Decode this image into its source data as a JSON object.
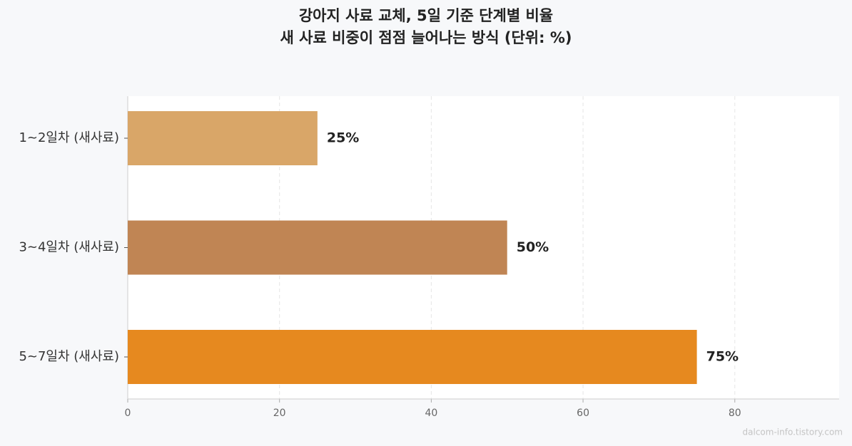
{
  "chart_data": {
    "type": "barh",
    "title": "강아지 사료 교체, 5일 기준 단계별 비율",
    "subtitle": "새 사료 비중이 점점 늘어나는 방식 (단위: %)",
    "categories": [
      "1~2일차 (새사료)",
      "3~4일차 (새사료)",
      "5~7일차 (새사료)"
    ],
    "values": [
      25,
      50,
      75
    ],
    "value_labels": [
      "25%",
      "50%",
      "75%"
    ],
    "colors": [
      "#d9a668",
      "#c08554",
      "#e6891f"
    ],
    "xlim": [
      0,
      93.75
    ],
    "xticks": [
      0,
      20,
      40,
      60,
      80
    ],
    "grid": true,
    "watermark": "dalcom-info.tistory.com"
  }
}
